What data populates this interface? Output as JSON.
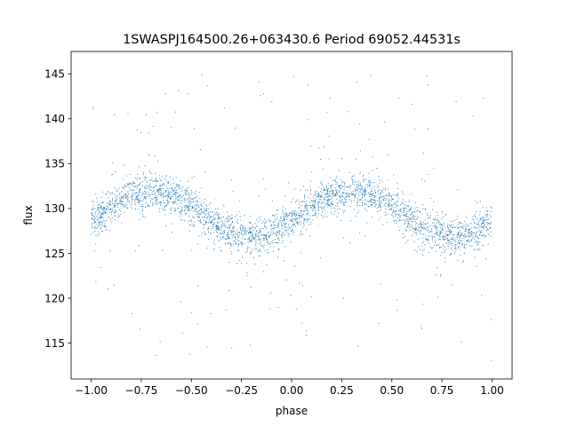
{
  "chart_data": {
    "type": "scatter",
    "title": "1SWASPJ164500.26+063430.6 Period 69052.44531s",
    "xlabel": "phase",
    "ylabel": "flux",
    "xlim": [
      -1.1,
      1.1
    ],
    "ylim": [
      111,
      147.5
    ],
    "xticks": [
      -1.0,
      -0.75,
      -0.5,
      -0.25,
      0.0,
      0.25,
      0.5,
      0.75,
      1.0
    ],
    "xtick_labels": [
      "−1.00",
      "−0.75",
      "−0.50",
      "−0.25",
      "0.00",
      "0.25",
      "0.50",
      "0.75",
      "1.00"
    ],
    "yticks": [
      115,
      120,
      125,
      130,
      135,
      140,
      145
    ],
    "ytick_labels": [
      "115",
      "120",
      "125",
      "130",
      "135",
      "140",
      "145"
    ],
    "grid": false,
    "marker_color": "#1f77b4",
    "series": [
      {
        "points_sample": [
          [
            -1.0,
            128.0
          ],
          [
            -0.9,
            129.6
          ],
          [
            -0.8,
            131.0
          ],
          [
            -0.7,
            132.0
          ],
          [
            -0.6,
            131.4
          ],
          [
            -0.5,
            129.8
          ],
          [
            -0.4,
            128.2
          ],
          [
            -0.3,
            127.2
          ],
          [
            -0.2,
            126.9
          ],
          [
            -0.1,
            127.3
          ],
          [
            0.0,
            128.0
          ],
          [
            0.1,
            129.6
          ],
          [
            0.2,
            131.0
          ],
          [
            0.3,
            132.0
          ],
          [
            0.4,
            131.4
          ],
          [
            0.5,
            129.8
          ],
          [
            0.6,
            128.2
          ],
          [
            0.7,
            127.2
          ],
          [
            0.8,
            126.9
          ],
          [
            0.9,
            127.3
          ],
          [
            1.0,
            128.0
          ]
        ]
      }
    ]
  }
}
